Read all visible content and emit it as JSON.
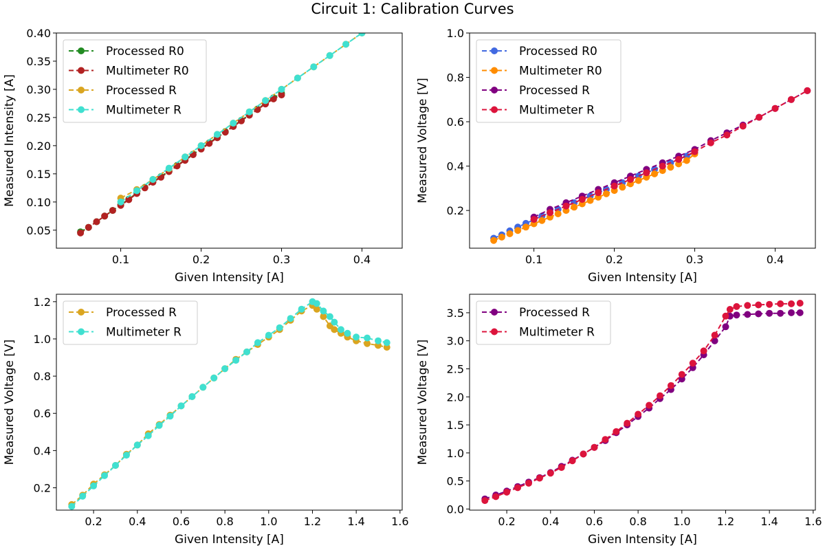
{
  "figure": {
    "title": "Circuit 1: Calibration Curves"
  },
  "chart_data": [
    {
      "id": "top-left",
      "type": "line",
      "xlabel": "Given Intensity [A]",
      "ylabel": "Measured Intensity [A]",
      "xlim": [
        0.02,
        0.45
      ],
      "ylim": [
        0.018,
        0.4
      ],
      "xticks": [
        0.1,
        0.2,
        0.3,
        0.4
      ],
      "yticks": [
        0.05,
        0.1,
        0.15,
        0.2,
        0.25,
        0.3,
        0.35,
        0.4
      ],
      "grid": false,
      "legend": "top-left",
      "series": [
        {
          "name": "Processed R0",
          "color": "#228b22",
          "x": [
            0.05,
            0.06,
            0.07,
            0.08,
            0.09,
            0.1,
            0.11,
            0.12,
            0.13,
            0.14,
            0.15,
            0.16,
            0.17,
            0.18,
            0.19,
            0.2,
            0.21,
            0.22,
            0.23,
            0.24,
            0.25,
            0.26,
            0.27,
            0.28,
            0.29,
            0.3
          ],
          "y": [
            0.047,
            0.055,
            0.065,
            0.075,
            0.085,
            0.095,
            0.105,
            0.116,
            0.126,
            0.136,
            0.145,
            0.155,
            0.165,
            0.175,
            0.185,
            0.195,
            0.205,
            0.215,
            0.225,
            0.235,
            0.245,
            0.255,
            0.265,
            0.275,
            0.285,
            0.293
          ]
        },
        {
          "name": "Multimeter R0",
          "color": "#b22222",
          "x": [
            0.05,
            0.06,
            0.07,
            0.08,
            0.09,
            0.1,
            0.11,
            0.12,
            0.13,
            0.14,
            0.15,
            0.16,
            0.17,
            0.18,
            0.19,
            0.2,
            0.21,
            0.22,
            0.23,
            0.24,
            0.25,
            0.26,
            0.27,
            0.28,
            0.29,
            0.3
          ],
          "y": [
            0.045,
            0.055,
            0.065,
            0.075,
            0.085,
            0.094,
            0.104,
            0.115,
            0.125,
            0.135,
            0.144,
            0.154,
            0.164,
            0.174,
            0.184,
            0.194,
            0.204,
            0.214,
            0.224,
            0.234,
            0.244,
            0.254,
            0.264,
            0.274,
            0.283,
            0.29
          ]
        },
        {
          "name": "Processed R",
          "color": "#daa520",
          "x": [
            0.1,
            0.12,
            0.14,
            0.16,
            0.18,
            0.2,
            0.22,
            0.24,
            0.26,
            0.28,
            0.3,
            0.32,
            0.34,
            0.36,
            0.38,
            0.4
          ],
          "y": [
            0.107,
            0.122,
            0.14,
            0.159,
            0.18,
            0.2,
            0.22,
            0.24,
            0.26,
            0.28,
            0.3,
            0.32,
            0.34,
            0.36,
            0.38,
            0.4
          ]
        },
        {
          "name": "Multimeter R",
          "color": "#40e0d0",
          "x": [
            0.1,
            0.12,
            0.14,
            0.16,
            0.18,
            0.2,
            0.22,
            0.24,
            0.26,
            0.28,
            0.3,
            0.32,
            0.34,
            0.36,
            0.38,
            0.4
          ],
          "y": [
            0.1,
            0.12,
            0.14,
            0.16,
            0.18,
            0.2,
            0.22,
            0.24,
            0.26,
            0.28,
            0.3,
            0.32,
            0.34,
            0.36,
            0.38,
            0.4
          ]
        }
      ]
    },
    {
      "id": "top-right",
      "type": "line",
      "xlabel": "Given Intensity [A]",
      "ylabel": "Measured Voltage [V]",
      "xlim": [
        0.02,
        0.45
      ],
      "ylim": [
        0.03,
        1.0
      ],
      "xticks": [
        0.1,
        0.2,
        0.3,
        0.4
      ],
      "yticks": [
        0.2,
        0.4,
        0.6,
        0.8,
        1.0
      ],
      "grid": false,
      "legend": "top-left",
      "series": [
        {
          "name": "Processed R0",
          "color": "#4169e1",
          "x": [
            0.05,
            0.06,
            0.07,
            0.08,
            0.09,
            0.1,
            0.11,
            0.12,
            0.13,
            0.14,
            0.15,
            0.16,
            0.17,
            0.18,
            0.19,
            0.2,
            0.21,
            0.22,
            0.23,
            0.24,
            0.25,
            0.26,
            0.27,
            0.28,
            0.29,
            0.3
          ],
          "y": [
            0.075,
            0.09,
            0.108,
            0.125,
            0.142,
            0.158,
            0.175,
            0.19,
            0.205,
            0.22,
            0.235,
            0.25,
            0.265,
            0.28,
            0.295,
            0.31,
            0.325,
            0.34,
            0.355,
            0.37,
            0.385,
            0.4,
            0.415,
            0.43,
            0.445,
            0.46
          ]
        },
        {
          "name": "Multimeter R0",
          "color": "#ff8c00",
          "x": [
            0.05,
            0.06,
            0.07,
            0.08,
            0.09,
            0.1,
            0.11,
            0.12,
            0.13,
            0.14,
            0.15,
            0.16,
            0.17,
            0.18,
            0.19,
            0.2,
            0.21,
            0.22,
            0.23,
            0.24,
            0.25,
            0.26,
            0.27,
            0.28,
            0.29,
            0.3
          ],
          "y": [
            0.065,
            0.08,
            0.095,
            0.11,
            0.125,
            0.14,
            0.155,
            0.17,
            0.185,
            0.2,
            0.215,
            0.23,
            0.245,
            0.26,
            0.275,
            0.29,
            0.305,
            0.32,
            0.335,
            0.35,
            0.365,
            0.38,
            0.395,
            0.41,
            0.425,
            0.455
          ]
        },
        {
          "name": "Processed R",
          "color": "#800080",
          "x": [
            0.1,
            0.12,
            0.14,
            0.16,
            0.18,
            0.2,
            0.22,
            0.24,
            0.26,
            0.28,
            0.3,
            0.32,
            0.34,
            0.36,
            0.38,
            0.4,
            0.42,
            0.44
          ],
          "y": [
            0.17,
            0.205,
            0.235,
            0.265,
            0.295,
            0.325,
            0.355,
            0.385,
            0.415,
            0.445,
            0.475,
            0.515,
            0.55,
            0.585,
            0.62,
            0.66,
            0.7,
            0.74
          ]
        },
        {
          "name": "Multimeter R",
          "color": "#dc143c",
          "x": [
            0.1,
            0.12,
            0.14,
            0.16,
            0.18,
            0.2,
            0.22,
            0.24,
            0.26,
            0.28,
            0.3,
            0.32,
            0.34,
            0.36,
            0.38,
            0.4,
            0.42,
            0.44
          ],
          "y": [
            0.16,
            0.19,
            0.22,
            0.25,
            0.28,
            0.31,
            0.34,
            0.37,
            0.4,
            0.43,
            0.465,
            0.505,
            0.54,
            0.58,
            0.62,
            0.66,
            0.7,
            0.74
          ]
        }
      ]
    },
    {
      "id": "bottom-left",
      "type": "line",
      "xlabel": "Given Intensity [A]",
      "ylabel": "Measured Voltage [V]",
      "xlim": [
        0.03,
        1.61
      ],
      "ylim": [
        0.08,
        1.24
      ],
      "xticks": [
        0.2,
        0.4,
        0.6,
        0.8,
        1.0,
        1.2,
        1.4,
        1.6
      ],
      "yticks": [
        0.2,
        0.4,
        0.6,
        0.8,
        1.0,
        1.2
      ],
      "grid": false,
      "legend": "top-left",
      "series": [
        {
          "name": "Processed R",
          "color": "#daa520",
          "x": [
            0.1,
            0.15,
            0.2,
            0.25,
            0.3,
            0.35,
            0.4,
            0.45,
            0.5,
            0.55,
            0.6,
            0.65,
            0.7,
            0.75,
            0.8,
            0.85,
            0.9,
            0.95,
            1.0,
            1.05,
            1.1,
            1.15,
            1.2,
            1.22,
            1.25,
            1.28,
            1.3,
            1.33,
            1.36,
            1.4,
            1.45,
            1.5,
            1.54
          ],
          "y": [
            0.11,
            0.16,
            0.22,
            0.27,
            0.32,
            0.38,
            0.43,
            0.49,
            0.54,
            0.59,
            0.64,
            0.69,
            0.74,
            0.79,
            0.84,
            0.89,
            0.93,
            0.97,
            1.01,
            1.05,
            1.1,
            1.15,
            1.18,
            1.16,
            1.12,
            1.07,
            1.05,
            1.03,
            1.01,
            0.99,
            0.975,
            0.965,
            0.955
          ]
        },
        {
          "name": "Multimeter R",
          "color": "#40e0d0",
          "x": [
            0.1,
            0.15,
            0.2,
            0.25,
            0.3,
            0.35,
            0.4,
            0.45,
            0.5,
            0.55,
            0.6,
            0.65,
            0.7,
            0.75,
            0.8,
            0.85,
            0.9,
            0.95,
            1.0,
            1.05,
            1.1,
            1.15,
            1.2,
            1.22,
            1.25,
            1.28,
            1.3,
            1.33,
            1.36,
            1.4,
            1.45,
            1.5,
            1.54
          ],
          "y": [
            0.1,
            0.155,
            0.21,
            0.265,
            0.32,
            0.375,
            0.43,
            0.48,
            0.535,
            0.585,
            0.64,
            0.69,
            0.74,
            0.79,
            0.84,
            0.885,
            0.93,
            0.98,
            1.02,
            1.06,
            1.11,
            1.16,
            1.2,
            1.19,
            1.15,
            1.12,
            1.09,
            1.05,
            1.03,
            1.01,
            1.005,
            0.99,
            0.98
          ]
        }
      ]
    },
    {
      "id": "bottom-right",
      "type": "line",
      "xlabel": "Given Intensity [A]",
      "ylabel": "Measured Voltage [V]",
      "xlim": [
        0.03,
        1.61
      ],
      "ylim": [
        -0.02,
        3.83
      ],
      "xticks": [
        0.2,
        0.4,
        0.6,
        0.8,
        1.0,
        1.2,
        1.4,
        1.6
      ],
      "yticks": [
        0.0,
        0.5,
        1.0,
        1.5,
        2.0,
        2.5,
        3.0,
        3.5
      ],
      "grid": false,
      "legend": "top-left",
      "series": [
        {
          "name": "Processed R",
          "color": "#800080",
          "x": [
            0.1,
            0.15,
            0.2,
            0.25,
            0.3,
            0.35,
            0.4,
            0.45,
            0.5,
            0.55,
            0.6,
            0.65,
            0.7,
            0.75,
            0.8,
            0.85,
            0.9,
            0.95,
            1.0,
            1.05,
            1.1,
            1.15,
            1.2,
            1.22,
            1.25,
            1.3,
            1.35,
            1.4,
            1.45,
            1.5,
            1.54
          ],
          "y": [
            0.18,
            0.25,
            0.32,
            0.4,
            0.48,
            0.56,
            0.65,
            0.76,
            0.87,
            0.98,
            1.1,
            1.22,
            1.36,
            1.5,
            1.65,
            1.8,
            1.97,
            2.13,
            2.32,
            2.52,
            2.75,
            3.0,
            3.25,
            3.44,
            3.46,
            3.47,
            3.48,
            3.49,
            3.49,
            3.5,
            3.5
          ]
        },
        {
          "name": "Multimeter R",
          "color": "#dc143c",
          "x": [
            0.1,
            0.15,
            0.2,
            0.25,
            0.3,
            0.35,
            0.4,
            0.45,
            0.5,
            0.55,
            0.6,
            0.65,
            0.7,
            0.75,
            0.8,
            0.85,
            0.9,
            0.95,
            1.0,
            1.05,
            1.1,
            1.15,
            1.2,
            1.22,
            1.25,
            1.3,
            1.35,
            1.4,
            1.45,
            1.5,
            1.54
          ],
          "y": [
            0.15,
            0.22,
            0.3,
            0.38,
            0.46,
            0.55,
            0.64,
            0.74,
            0.86,
            0.98,
            1.1,
            1.24,
            1.38,
            1.53,
            1.69,
            1.85,
            2.02,
            2.2,
            2.4,
            2.6,
            2.82,
            3.1,
            3.44,
            3.56,
            3.61,
            3.63,
            3.64,
            3.65,
            3.66,
            3.66,
            3.67
          ]
        }
      ]
    }
  ]
}
